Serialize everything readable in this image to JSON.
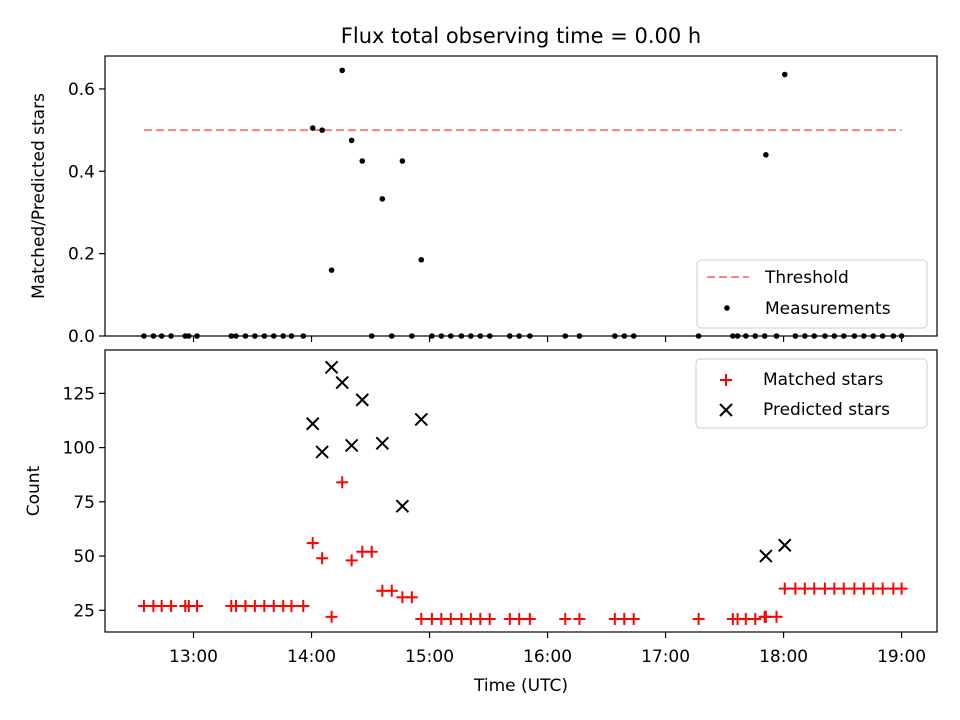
{
  "chart_data": [
    {
      "type": "scatter",
      "title": "Flux total observing time = 0.00 h",
      "xlabel": "",
      "ylabel": "Matched/Predicted stars",
      "xlim": [
        12.25,
        19.3
      ],
      "ylim": [
        0,
        0.68
      ],
      "yticks": [
        0.0,
        0.2,
        0.4,
        0.6
      ],
      "ytick_labels": [
        "0.0",
        "0.2",
        "0.4",
        "0.6"
      ],
      "legend_position": "lower-right",
      "series": [
        {
          "name": "Threshold",
          "style": "dashed-line",
          "color": "#ff7f7f",
          "x": [
            12.58,
            19.0
          ],
          "y": [
            0.5,
            0.5
          ]
        },
        {
          "name": "Measurements",
          "style": "dot",
          "color": "#000000",
          "x": [
            12.58,
            12.66,
            12.73,
            12.81,
            12.93,
            12.96,
            13.03,
            13.32,
            13.36,
            13.44,
            13.52,
            13.6,
            13.68,
            13.76,
            13.83,
            13.93,
            14.01,
            14.09,
            14.17,
            14.26,
            14.34,
            14.43,
            14.51,
            14.6,
            14.68,
            14.77,
            14.85,
            14.93,
            15.02,
            15.1,
            15.18,
            15.27,
            15.35,
            15.43,
            15.51,
            15.68,
            15.76,
            15.85,
            16.15,
            16.27,
            16.57,
            16.65,
            16.73,
            17.28,
            17.57,
            17.61,
            17.68,
            17.76,
            17.84,
            17.85,
            17.94,
            18.01,
            18.1,
            18.18,
            18.26,
            18.35,
            18.43,
            18.51,
            18.6,
            18.68,
            18.76,
            18.84,
            18.93,
            19.0
          ],
          "y": [
            0,
            0,
            0,
            0,
            0,
            0,
            0,
            0,
            0,
            0,
            0,
            0,
            0,
            0,
            0,
            0,
            0.505,
            0.5,
            0.16,
            0.645,
            0.475,
            0.425,
            0,
            0.333,
            0,
            0.425,
            0,
            0.185,
            0,
            0,
            0,
            0,
            0,
            0,
            0,
            0,
            0,
            0,
            0,
            0,
            0,
            0,
            0,
            0,
            0,
            0,
            0,
            0,
            0,
            0.44,
            0,
            0.635,
            0,
            0,
            0,
            0,
            0,
            0,
            0,
            0,
            0,
            0,
            0,
            0
          ]
        }
      ]
    },
    {
      "type": "scatter",
      "title": "",
      "xlabel": "Time (UTC)",
      "ylabel": "Count",
      "xlim": [
        12.25,
        19.3
      ],
      "ylim": [
        15,
        145
      ],
      "yticks": [
        25,
        50,
        75,
        100,
        125
      ],
      "ytick_labels": [
        "25",
        "50",
        "75",
        "100",
        "125"
      ],
      "xticks": [
        13,
        14,
        15,
        16,
        17,
        18,
        19
      ],
      "xtick_labels": [
        "13:00",
        "14:00",
        "15:00",
        "16:00",
        "17:00",
        "18:00",
        "19:00"
      ],
      "legend_position": "upper-right",
      "series": [
        {
          "name": "Matched stars",
          "style": "plus",
          "color": "#ff0000",
          "x": [
            12.58,
            12.66,
            12.73,
            12.81,
            12.93,
            12.96,
            13.03,
            13.32,
            13.36,
            13.44,
            13.52,
            13.6,
            13.68,
            13.76,
            13.83,
            13.93,
            14.01,
            14.09,
            14.17,
            14.26,
            14.34,
            14.43,
            14.51,
            14.6,
            14.68,
            14.77,
            14.85,
            14.93,
            15.02,
            15.1,
            15.18,
            15.27,
            15.35,
            15.43,
            15.51,
            15.68,
            15.76,
            15.85,
            16.15,
            16.27,
            16.57,
            16.65,
            16.73,
            17.28,
            17.57,
            17.61,
            17.68,
            17.76,
            17.84,
            17.85,
            17.94,
            18.01,
            18.1,
            18.18,
            18.26,
            18.35,
            18.43,
            18.51,
            18.6,
            18.68,
            18.76,
            18.84,
            18.93,
            19.0
          ],
          "y": [
            27,
            27,
            27,
            27,
            27,
            27,
            27,
            27,
            27,
            27,
            27,
            27,
            27,
            27,
            27,
            27,
            56,
            49,
            22,
            84,
            48,
            52,
            52,
            34,
            34,
            31,
            31,
            21,
            21,
            21,
            21,
            21,
            21,
            21,
            21,
            21,
            21,
            21,
            21,
            21,
            21,
            21,
            21,
            21,
            21,
            21,
            21,
            21,
            22,
            22,
            22,
            35,
            35,
            35,
            35,
            35,
            35,
            35,
            35,
            35,
            35,
            35,
            35,
            35
          ]
        },
        {
          "name": "Predicted stars",
          "style": "cross",
          "color": "#000000",
          "x": [
            14.01,
            14.09,
            14.17,
            14.26,
            14.34,
            14.43,
            14.6,
            14.77,
            14.93,
            17.85,
            18.01
          ],
          "y": [
            111,
            98,
            137,
            130,
            101,
            122,
            102,
            73,
            113,
            50,
            55
          ]
        }
      ]
    }
  ]
}
